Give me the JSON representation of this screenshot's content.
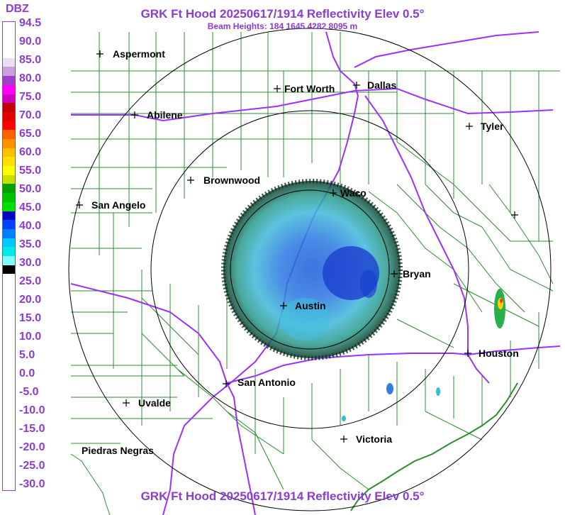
{
  "header": {
    "title": "GRK Ft Hood 20250617/1914 Reflectivity Elev 0.5°",
    "subtitle": "Beam Heights: 184 1645 4282 8095 m",
    "footer_title": "GRK Ft Hood 20250617/1914 Reflectivity Elev 0.5°"
  },
  "legend": {
    "unit": "DBZ",
    "labels": [
      "94.5",
      "90.0",
      "85.0",
      "80.0",
      "75.0",
      "70.0",
      "65.0",
      "60.0",
      "55.0",
      "50.0",
      "45.0",
      "40.0",
      "35.0",
      "30.0",
      "25.0",
      "20.0",
      "15.0",
      "10.0",
      "5.0",
      "0.0",
      "-5.0",
      "-10.0",
      "-15.0",
      "-20.0",
      "-25.0",
      "-30.0"
    ],
    "colors": [
      "#ffffff",
      "#ffffff",
      "#ffffff",
      "#ffffff",
      "#e8e0f0",
      "#c8a0e0",
      "#a040c8",
      "#ff00ff",
      "#d000c0",
      "#c00000",
      "#e00000",
      "#ff0000",
      "#ff6000",
      "#ff9000",
      "#ffc000",
      "#ffe000",
      "#ffff00",
      "#c8e000",
      "#00a000",
      "#00c000",
      "#00e000",
      "#0000c0",
      "#0040ff",
      "#0080ff",
      "#00c8ff",
      "#00e8e8",
      "#80ffff",
      "#000000",
      "#ffffff",
      "#ffffff",
      "#ffffff",
      "#ffffff",
      "#ffffff",
      "#ffffff",
      "#ffffff",
      "#ffffff",
      "#ffffff",
      "#ffffff",
      "#ffffff",
      "#ffffff",
      "#ffffff",
      "#ffffff",
      "#ffffff",
      "#ffffff",
      "#ffffff",
      "#ffffff",
      "#ffffff",
      "#ffffff",
      "#ffffff",
      "#ffffff",
      "#ffffff",
      "#ffffff"
    ]
  },
  "cities": [
    {
      "name": "Aspermont"
    },
    {
      "name": "Fort Worth"
    },
    {
      "name": "Dallas"
    },
    {
      "name": "Abilene"
    },
    {
      "name": "Tyler"
    },
    {
      "name": "Brownwood"
    },
    {
      "name": "Waco"
    },
    {
      "name": "San Angelo"
    },
    {
      "name": "Bryan"
    },
    {
      "name": "Austin"
    },
    {
      "name": "Houston"
    },
    {
      "name": "San Antonio"
    },
    {
      "name": "Uvalde"
    },
    {
      "name": "Victoria"
    },
    {
      "name": "Piedras Negras"
    },
    {
      "name": ""
    }
  ],
  "colors": {
    "title": "#8c3cd2",
    "county_lines": "#2e8b2e",
    "highways": "#9b30ff",
    "range_rings": "#000000"
  }
}
